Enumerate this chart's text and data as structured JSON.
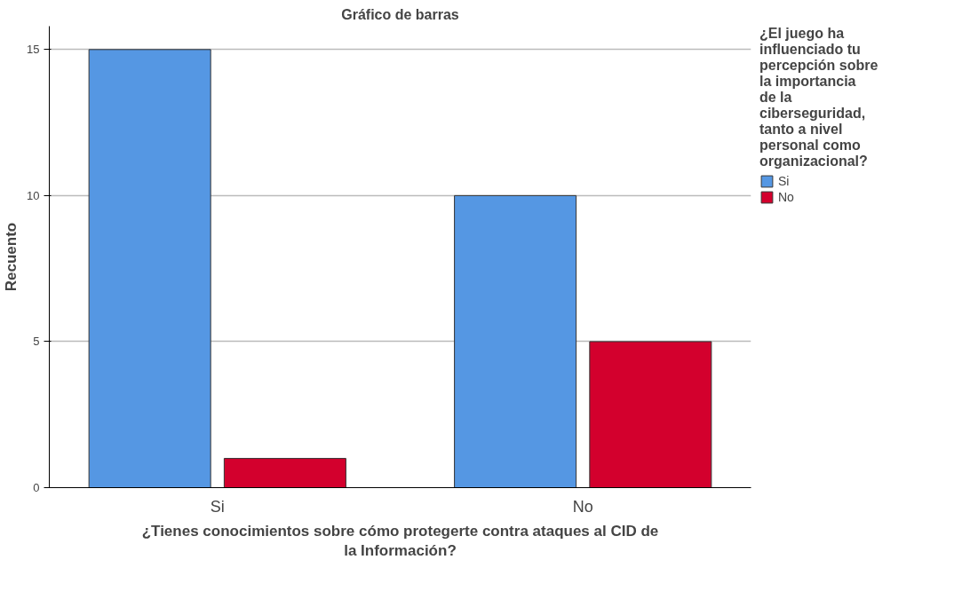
{
  "chart_data": {
    "type": "bar",
    "title": "Gráfico de barras",
    "xlabel": "¿Tienes conocimientos sobre cómo protegerte contra ataques al CID de la Información?",
    "ylabel": "Recuento",
    "legend_title": "¿El juego ha influenciado tu percepción sobre la importancia de la ciberseguridad, tanto a nivel personal como organizacional?",
    "categories": [
      "Si",
      "No"
    ],
    "series": [
      {
        "name": "Si",
        "color": "#5597e3",
        "values": [
          15,
          10
        ]
      },
      {
        "name": "No",
        "color": "#d3002d",
        "values": [
          1,
          5
        ]
      }
    ],
    "ylim": [
      0,
      15.8
    ],
    "yticks": [
      0,
      5,
      10,
      15
    ],
    "grid": "y",
    "legend": "right"
  }
}
